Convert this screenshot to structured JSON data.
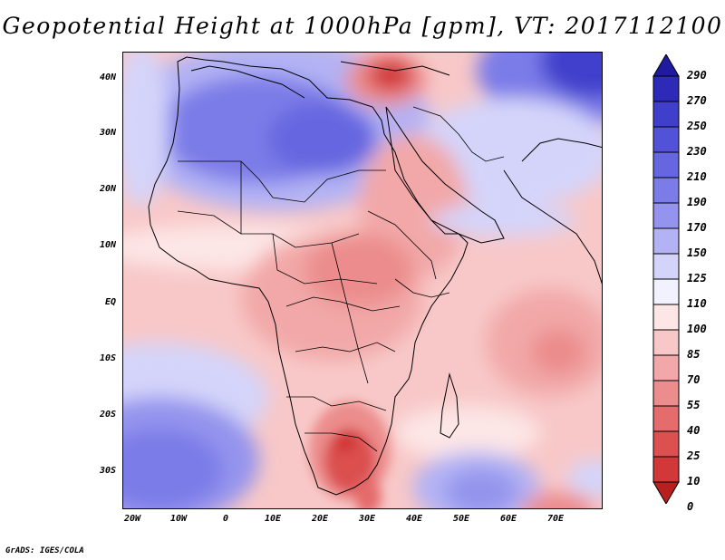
{
  "title": "Geopotential Height at 1000hPa [gpm], VT: 2017112100",
  "footer": "GrADS: IGES/COLA",
  "axes": {
    "lat_labels": [
      "40N",
      "30N",
      "20N",
      "10N",
      "EQ",
      "10S",
      "20S",
      "30S"
    ],
    "lon_labels": [
      "20W",
      "10W",
      "0",
      "10E",
      "20E",
      "30E",
      "40E",
      "50E",
      "60E",
      "70E"
    ]
  },
  "colorbar": {
    "levels": [
      "290",
      "270",
      "250",
      "230",
      "210",
      "190",
      "170",
      "150",
      "125",
      "110",
      "100",
      "85",
      "70",
      "55",
      "40",
      "25",
      "10",
      "0"
    ],
    "colors": [
      "#1f1aa0",
      "#2d2ab8",
      "#3f3fcc",
      "#5252d8",
      "#6666e0",
      "#7c7ce8",
      "#9494ee",
      "#b2b2f4",
      "#d4d4fa",
      "#f2f2ff",
      "#fde6e6",
      "#f8c8c8",
      "#f2a8a8",
      "#ec8c8c",
      "#e46c6c",
      "#dc5050",
      "#d23838",
      "#b82020"
    ]
  }
}
